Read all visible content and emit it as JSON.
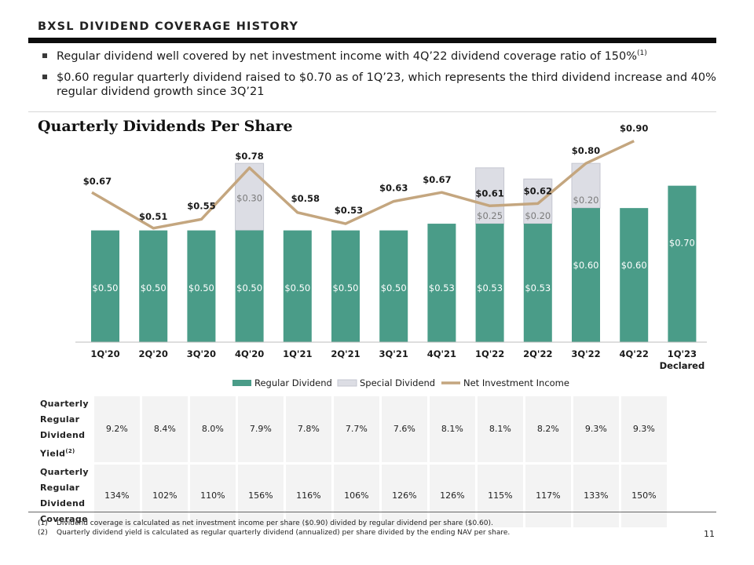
{
  "header": {
    "title": "BXSL DIVIDEND COVERAGE HISTORY"
  },
  "bullets": [
    {
      "text": "Regular dividend well covered by net investment income with 4Q’22 dividend coverage ratio of 150%",
      "sup": "(1)"
    },
    {
      "text": "$0.60 regular quarterly dividend raised to $0.70 as of 1Q’23, which represents the third dividend increase and 40% regular dividend growth since 3Q’21",
      "sup": ""
    }
  ],
  "colors": {
    "regular": "#4a9c88",
    "special": "#dcdde4",
    "special_border": "#c4c6d0",
    "nii": "#c4a67f"
  },
  "chart_data": {
    "type": "bar",
    "title": "Quarterly Dividends Per Share",
    "categories": [
      "1Q'20",
      "2Q'20",
      "3Q'20",
      "4Q'20",
      "1Q'21",
      "2Q'21",
      "3Q'21",
      "4Q'21",
      "1Q'22",
      "2Q'22",
      "3Q'22",
      "4Q'22",
      "1Q'23\nDeclared"
    ],
    "series": [
      {
        "name": "Regular Dividend",
        "kind": "bar",
        "values": [
          0.5,
          0.5,
          0.5,
          0.5,
          0.5,
          0.5,
          0.5,
          0.53,
          0.53,
          0.53,
          0.6,
          0.6,
          0.7
        ],
        "labels": [
          "$0.50",
          "$0.50",
          "$0.50",
          "$0.50",
          "$0.50",
          "$0.50",
          "$0.50",
          "$0.53",
          "$0.53",
          "$0.53",
          "$0.60",
          "$0.60",
          "$0.70"
        ]
      },
      {
        "name": "Special Dividend",
        "kind": "stacked-bar",
        "values": [
          0,
          0,
          0,
          0.3,
          0,
          0,
          0,
          0,
          0.25,
          0.2,
          0.2,
          0,
          0
        ],
        "labels": [
          "",
          "",
          "",
          "$0.30",
          "",
          "",
          "",
          "",
          "$0.25",
          "$0.20",
          "$0.20",
          "",
          ""
        ]
      },
      {
        "name": "Net Investment Income",
        "kind": "line",
        "values": [
          0.67,
          0.51,
          0.55,
          0.78,
          0.58,
          0.53,
          0.63,
          0.67,
          0.61,
          0.62,
          0.8,
          0.9,
          null
        ],
        "labels": [
          "$0.67",
          "$0.51",
          "$0.55",
          "$0.78",
          "$0.58",
          "$0.53",
          "$0.63",
          "$0.67",
          "$0.61",
          "$0.62",
          "$0.80",
          "$0.90",
          ""
        ]
      }
    ],
    "ylim": [
      0,
      0.92
    ],
    "legend": "bottom-center",
    "grid": false
  },
  "metrics": {
    "rows": [
      {
        "label_lines": [
          "Quarterly",
          "Regular",
          "Dividend",
          "Yield"
        ],
        "label_sup": "(2)",
        "values": [
          "9.2%",
          "8.4%",
          "8.0%",
          "7.9%",
          "7.8%",
          "7.7%",
          "7.6%",
          "8.1%",
          "8.1%",
          "8.2%",
          "9.3%",
          "9.3%"
        ]
      },
      {
        "label_lines": [
          "Quarterly",
          "Regular",
          "Dividend",
          "Coverage"
        ],
        "label_sup": "",
        "values": [
          "134%",
          "102%",
          "110%",
          "156%",
          "116%",
          "106%",
          "126%",
          "126%",
          "115%",
          "117%",
          "133%",
          "150%"
        ]
      }
    ]
  },
  "footnotes": [
    {
      "num": "(1)",
      "text": "Dividend coverage is calculated as net investment income per share ($0.90) divided by regular dividend per share ($0.60)."
    },
    {
      "num": "(2)",
      "text": "Quarterly dividend yield is calculated as regular quarterly dividend (annualized) per share divided by the ending NAV per share."
    }
  ],
  "page_number": "11"
}
